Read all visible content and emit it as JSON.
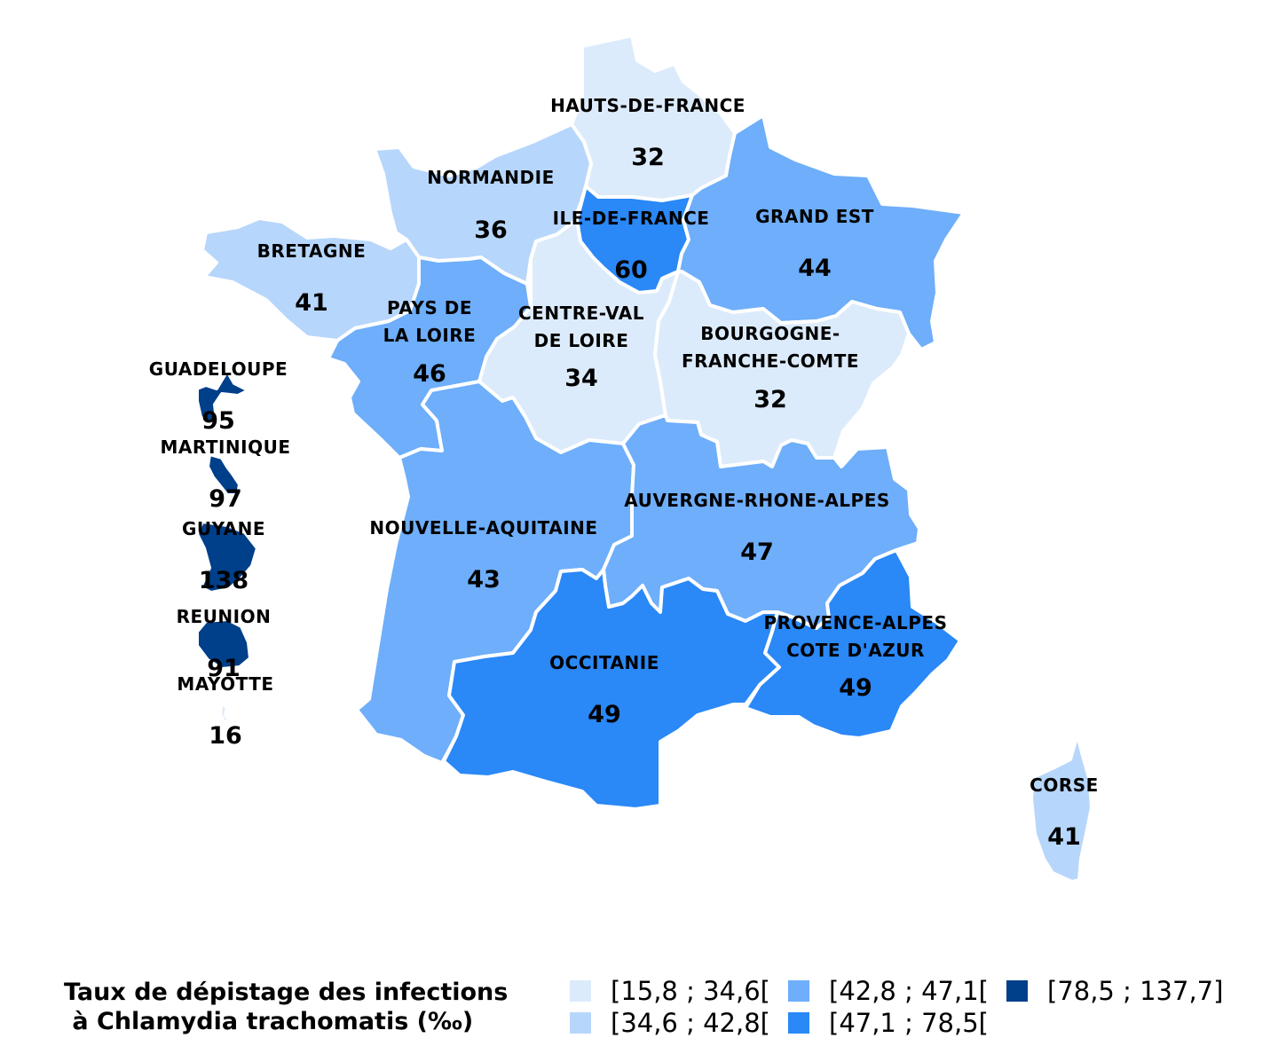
{
  "map": {
    "regions": [
      {
        "id": "hauts-de-france",
        "name": [
          "HAUTS-DE-FRANCE"
        ],
        "value": "32",
        "class": 1
      },
      {
        "id": "normandie",
        "name": [
          "NORMANDIE"
        ],
        "value": "36",
        "class": 2
      },
      {
        "id": "ile-de-france",
        "name": [
          "ILE-DE-FRANCE"
        ],
        "value": "60",
        "class": 4
      },
      {
        "id": "grand-est",
        "name": [
          "GRAND EST"
        ],
        "value": "44",
        "class": 3
      },
      {
        "id": "bretagne",
        "name": [
          "BRETAGNE"
        ],
        "value": "41",
        "class": 2
      },
      {
        "id": "pays-de-la-loire",
        "name": [
          "PAYS DE",
          "LA LOIRE"
        ],
        "value": "46",
        "class": 3
      },
      {
        "id": "centre-val-de-loire",
        "name": [
          "CENTRE-VAL",
          "DE LOIRE"
        ],
        "value": "34",
        "class": 1
      },
      {
        "id": "bourgogne-franche-comte",
        "name": [
          "BOURGOGNE-",
          "FRANCHE-COMTE"
        ],
        "value": "32",
        "class": 1
      },
      {
        "id": "nouvelle-aquitaine",
        "name": [
          "NOUVELLE-AQUITAINE"
        ],
        "value": "43",
        "class": 3
      },
      {
        "id": "auvergne-rhone-alpes",
        "name": [
          "AUVERGNE-RHONE-ALPES"
        ],
        "value": "47",
        "class": 3
      },
      {
        "id": "occitanie",
        "name": [
          "OCCITANIE"
        ],
        "value": "49",
        "class": 4
      },
      {
        "id": "provence-alpes-cote-dazur",
        "name": [
          "PROVENCE-ALPES",
          "COTE D'AZUR"
        ],
        "value": "49",
        "class": 4
      },
      {
        "id": "corse",
        "name": [
          "CORSE"
        ],
        "value": "41",
        "class": 2
      },
      {
        "id": "guadeloupe",
        "name": [
          "GUADELOUPE"
        ],
        "value": "95",
        "class": 5
      },
      {
        "id": "martinique",
        "name": [
          "MARTINIQUE"
        ],
        "value": "97",
        "class": 5
      },
      {
        "id": "guyane",
        "name": [
          "GUYANE"
        ],
        "value": "138",
        "class": 5
      },
      {
        "id": "reunion",
        "name": [
          "REUNION"
        ],
        "value": "91",
        "class": 5
      },
      {
        "id": "mayotte",
        "name": [
          "MAYOTTE"
        ],
        "value": "16",
        "class": 1
      }
    ]
  },
  "legend": {
    "title": "Taux de dépistage des infections\n à Chlamydia trachomatis (‰)",
    "classes": [
      {
        "class": 1,
        "label": "[15,8 ; 34,6[",
        "color": "#dcebfb"
      },
      {
        "class": 2,
        "label": "[34,6 ; 42,8[",
        "color": "#b7d6fb"
      },
      {
        "class": 3,
        "label": "[42,8 ; 47,1[",
        "color": "#6eaefa"
      },
      {
        "class": 4,
        "label": "[47,1 ; 78,5[",
        "color": "#2a88f7"
      },
      {
        "class": 5,
        "label": "[78,5 ; 137,7]",
        "color": "#003f8a"
      }
    ]
  }
}
